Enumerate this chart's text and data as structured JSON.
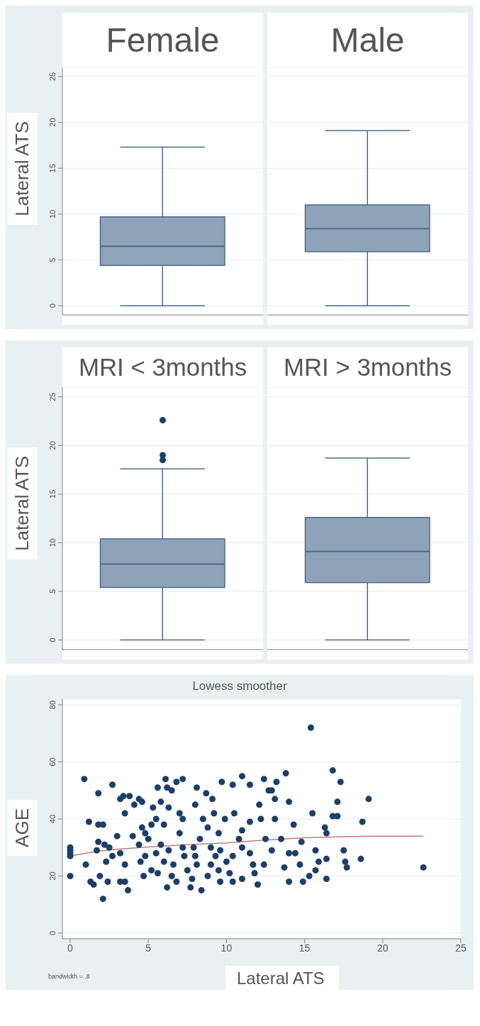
{
  "chart_data": [
    {
      "type": "box",
      "categories": [
        "Female",
        "Male"
      ],
      "ylabel": "Lateral ATS",
      "ylim": [
        -1,
        26
      ],
      "yticks": [
        0,
        5,
        10,
        15,
        20,
        25
      ],
      "grid": "y",
      "series": [
        {
          "color": "#8ea3b8",
          "boxes": [
            {
              "low": 0,
              "q1": 4.4,
              "median": 6.5,
              "q3": 9.7,
              "high": 17.3
            },
            {
              "low": 0,
              "q1": 5.9,
              "median": 8.4,
              "q3": 11.0,
              "high": 19.1
            }
          ]
        }
      ]
    },
    {
      "type": "box",
      "categories": [
        "MRI < 3months",
        "MRI > 3months"
      ],
      "ylabel": "Lateral ATS",
      "ylim": [
        -1,
        26
      ],
      "yticks": [
        0,
        5,
        10,
        15,
        20,
        25
      ],
      "grid": "y",
      "marker": "circle",
      "series": [
        {
          "color": "#8ea3b8",
          "boxes": [
            {
              "low": 0,
              "q1": 5.4,
              "median": 7.8,
              "q3": 10.4,
              "high": 17.6,
              "outliers": [
                22.6,
                19.0,
                18.5
              ]
            },
            {
              "low": 0,
              "q1": 5.9,
              "median": 9.1,
              "q3": 12.6,
              "high": 18.7
            }
          ]
        }
      ]
    },
    {
      "type": "scatter",
      "title": "Lowess smoother",
      "xlabel": "Lateral ATS",
      "ylabel": "AGE",
      "xlim": [
        -0.5,
        25
      ],
      "xticks": [
        0,
        5,
        10,
        15,
        20,
        25
      ],
      "ylim": [
        -2,
        82
      ],
      "yticks": [
        0,
        20,
        40,
        60,
        80
      ],
      "grid": "y",
      "marker": "circle",
      "annotations": [
        "bandwidth = .8"
      ],
      "series": [
        {
          "type": "scatter",
          "color": "#1b3f6b",
          "x": [
            0,
            0,
            0,
            0,
            0,
            0.9,
            1,
            1.2,
            1.3,
            1.5,
            1.7,
            1.8,
            1.8,
            2.1,
            1.8,
            2.1,
            1.9,
            2.4,
            2.3,
            2.7,
            2.5,
            2.7,
            3,
            3.2,
            3.4,
            3.5,
            3.2,
            3.5,
            3.7,
            3.5,
            3.8,
            4,
            4.1,
            4.4,
            4.6,
            4.4,
            4.6,
            4.8,
            4.7,
            5.3,
            5.2,
            5.6,
            5.8,
            6.1,
            6.2,
            6.3,
            6.5,
            6.2,
            6.8,
            7.2,
            5.6,
            6.6,
            7.2,
            7.7,
            7.9,
            8.1,
            8.4,
            8.7,
            9.1,
            8.8,
            9,
            9.6,
            9.7,
            9.9,
            9.5,
            11,
            12.4,
            13.2,
            13.8,
            15.4,
            16.8,
            17.3,
            17.1,
            19.1,
            18.7,
            15.5,
            16.8,
            17.1,
            16.3,
            16.4,
            17.5,
            17.6,
            17.7,
            18.6,
            22.6,
            16.4,
            16.4,
            15.7,
            14.9,
            15.3,
            14.8,
            14.3,
            13.1,
            14,
            12.7,
            12.9,
            11.5,
            10.4,
            12.1,
            12.2,
            11.5,
            13.1,
            13.5,
            12.9,
            14,
            14.4,
            14.7,
            13.7,
            12.4,
            11,
            10.4,
            11.8,
            11,
            12,
            10.4,
            14,
            15.7,
            15.9,
            5,
            5.5,
            6,
            6.5,
            7,
            7.5,
            8,
            8.5,
            9,
            9.5,
            10,
            10.5,
            11,
            6,
            7,
            8,
            9.2,
            4.8,
            5.2,
            6.8,
            7.8,
            8.8,
            10.2,
            11.5,
            12.5,
            5.8,
            6.3,
            7.3,
            8.3,
            9.3,
            4.5,
            3.2,
            2.2,
            5.5,
            7.2,
            8.1,
            9.6,
            10.8,
            11.7
          ],
          "values": [
            20,
            27,
            28,
            29,
            30,
            54,
            24,
            39,
            18,
            17,
            29,
            49,
            38,
            38,
            32,
            12,
            20,
            18,
            25,
            52,
            30,
            27,
            34,
            47,
            48,
            42,
            18,
            18,
            15,
            24,
            48,
            34,
            45,
            47,
            46,
            31,
            37,
            27,
            20,
            44,
            38,
            51,
            46,
            54,
            51,
            44,
            50,
            16,
            53,
            54,
            21,
            24,
            40,
            16,
            30,
            51,
            15,
            49,
            47,
            37,
            24,
            18,
            53,
            40,
            22,
            55,
            54,
            53,
            56,
            72,
            57,
            53,
            46,
            47,
            39,
            42,
            41,
            41,
            37,
            35,
            29,
            25,
            23,
            26,
            23,
            26,
            19,
            22,
            18,
            20,
            32,
            38,
            47,
            46,
            50,
            50,
            52,
            52,
            45,
            40,
            39,
            40,
            33,
            29,
            28,
            28,
            24,
            23,
            24,
            30,
            27,
            21,
            19,
            17,
            18,
            18,
            29,
            25,
            33,
            28,
            25,
            20,
            35,
            22,
            27,
            40,
            30,
            35,
            25,
            42,
            36,
            38,
            42,
            45,
            42,
            35,
            22,
            18,
            19,
            20,
            21,
            28,
            33,
            31,
            29,
            27,
            33,
            27,
            25,
            28,
            31,
            40,
            30,
            24,
            29,
            33,
            24
          ]
        },
        {
          "type": "line",
          "color": "#c47a7a",
          "line_style": "solid",
          "marker": "none",
          "x": [
            0,
            1,
            2,
            3,
            5,
            7.5,
            10,
            12.5,
            15,
            17.5,
            20,
            22.6
          ],
          "values": [
            27,
            28,
            28.8,
            29.4,
            30.2,
            31,
            31.6,
            32.6,
            33.4,
            33.8,
            34,
            34
          ]
        }
      ]
    }
  ]
}
